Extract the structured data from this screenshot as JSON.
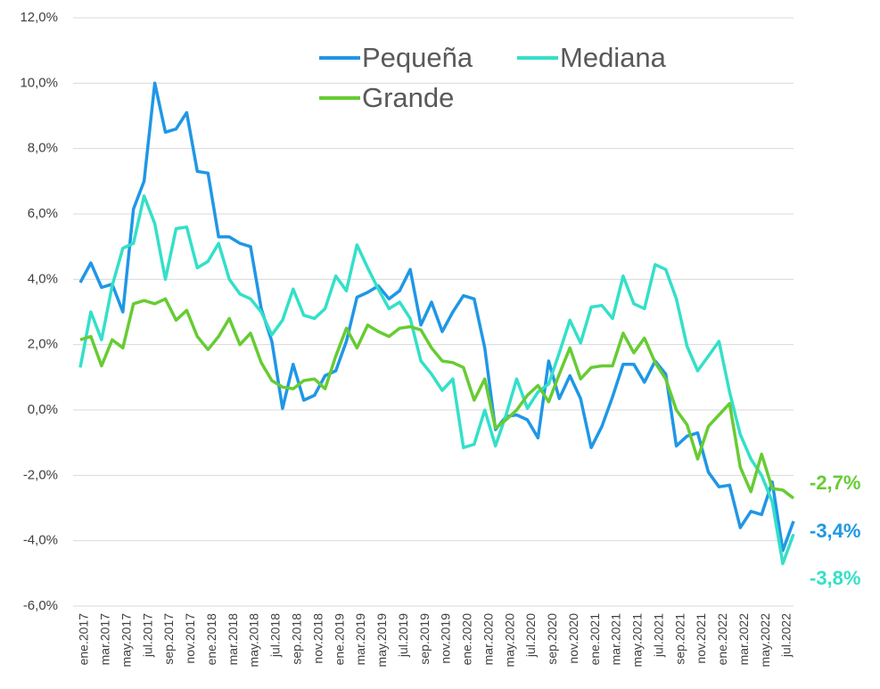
{
  "chart_data": {
    "type": "line",
    "categories": [
      "ene.2017",
      null,
      "mar.2017",
      null,
      "may.2017",
      null,
      "jul.2017",
      null,
      "sep.2017",
      null,
      "nov.2017",
      null,
      "ene.2018",
      null,
      "mar.2018",
      null,
      "may.2018",
      null,
      "jul.2018",
      null,
      "sep.2018",
      null,
      "nov.2018",
      null,
      "ene.2019",
      null,
      "mar.2019",
      null,
      "may.2019",
      null,
      "jul.2019",
      null,
      "sep.2019",
      null,
      "nov.2019",
      null,
      "ene.2020",
      null,
      "mar.2020",
      null,
      "may.2020",
      null,
      "jul.2020",
      null,
      "sep.2020",
      null,
      "nov.2020",
      null,
      "ene.2021",
      null,
      "mar.2021",
      null,
      "may.2021",
      null,
      "jul.2021",
      null,
      "sep.2021",
      null,
      "nov.2021",
      null,
      "ene.2022",
      null,
      "mar.2022",
      null,
      "may.2022",
      null,
      "jul.2022",
      null
    ],
    "series": [
      {
        "name": "Pequeña",
        "color": "#1f97e6",
        "values": [
          3.9,
          4.5,
          3.75,
          3.85,
          3.0,
          6.15,
          7.0,
          10.0,
          8.5,
          8.6,
          9.1,
          7.3,
          7.25,
          5.3,
          5.3,
          5.1,
          5.0,
          3.1,
          2.1,
          0.05,
          1.4,
          0.3,
          0.45,
          1.05,
          1.2,
          2.1,
          3.45,
          3.6,
          3.8,
          3.4,
          3.65,
          4.3,
          2.6,
          3.3,
          2.4,
          3.0,
          3.5,
          3.4,
          1.9,
          -0.6,
          -0.2,
          -0.15,
          -0.3,
          -0.85,
          1.5,
          0.35,
          1.05,
          0.35,
          -1.15,
          -0.5,
          0.4,
          1.4,
          1.4,
          0.85,
          1.5,
          1.1,
          -1.1,
          -0.8,
          -0.7,
          -1.9,
          -2.35,
          -2.3,
          -3.6,
          -3.1,
          -3.2,
          -2.2,
          -4.3,
          -3.4
        ],
        "value_labels": [
          null,
          null,
          null,
          null,
          null,
          null,
          null,
          null,
          null,
          null,
          null,
          null,
          null,
          null,
          null,
          null,
          null,
          null,
          null,
          null,
          null,
          null,
          null,
          null,
          null,
          null,
          null,
          null,
          null,
          null,
          null,
          null,
          null,
          null,
          null,
          null,
          null,
          null,
          null,
          null,
          null,
          null,
          null,
          null,
          null,
          null,
          null,
          null,
          null,
          null,
          null,
          null,
          null,
          null,
          null,
          null,
          null,
          null,
          null,
          null,
          null,
          null,
          null,
          null,
          null,
          null,
          null,
          "-3,4%"
        ]
      },
      {
        "name": "Mediana",
        "color": "#33e0c8",
        "values": [
          1.3,
          3.0,
          2.15,
          3.8,
          4.95,
          5.1,
          6.55,
          5.7,
          4.0,
          5.55,
          5.6,
          4.35,
          4.55,
          5.1,
          4.0,
          3.55,
          3.4,
          3.0,
          2.3,
          2.75,
          3.7,
          2.9,
          2.8,
          3.1,
          4.1,
          3.65,
          5.05,
          4.35,
          3.7,
          3.1,
          3.3,
          2.8,
          1.5,
          1.1,
          0.6,
          0.95,
          -1.15,
          -1.05,
          0.0,
          -1.1,
          -0.15,
          0.95,
          0.05,
          0.55,
          0.8,
          1.75,
          2.75,
          2.05,
          3.15,
          3.2,
          2.8,
          4.1,
          3.25,
          3.1,
          4.45,
          4.3,
          3.4,
          1.95,
          1.2,
          1.65,
          2.1,
          0.55,
          -0.75,
          -1.5,
          -2.0,
          -2.8,
          -4.7,
          -3.8
        ],
        "value_labels": [
          null,
          null,
          null,
          null,
          null,
          null,
          null,
          null,
          null,
          null,
          null,
          null,
          null,
          null,
          null,
          null,
          null,
          null,
          null,
          null,
          null,
          null,
          null,
          null,
          null,
          null,
          null,
          null,
          null,
          null,
          null,
          null,
          null,
          null,
          null,
          null,
          null,
          null,
          null,
          null,
          null,
          null,
          null,
          null,
          null,
          null,
          null,
          null,
          null,
          null,
          null,
          null,
          null,
          null,
          null,
          null,
          null,
          null,
          null,
          null,
          null,
          null,
          null,
          null,
          null,
          null,
          null,
          "-3,8%"
        ]
      },
      {
        "name": "Grande",
        "color": "#66cc33",
        "values": [
          2.15,
          2.25,
          1.35,
          2.15,
          1.9,
          3.25,
          3.35,
          3.25,
          3.4,
          2.75,
          3.05,
          2.25,
          1.85,
          2.25,
          2.8,
          2.0,
          2.35,
          1.45,
          0.9,
          0.7,
          0.65,
          0.9,
          0.95,
          0.65,
          1.65,
          2.5,
          1.9,
          2.6,
          2.4,
          2.25,
          2.5,
          2.55,
          2.45,
          1.9,
          1.5,
          1.45,
          1.3,
          0.3,
          0.95,
          -0.55,
          -0.3,
          0.0,
          0.45,
          0.75,
          0.25,
          1.1,
          1.9,
          0.95,
          1.3,
          1.35,
          1.35,
          2.35,
          1.75,
          2.2,
          1.45,
          0.95,
          0.0,
          -0.45,
          -1.5,
          -0.5,
          -0.15,
          0.2,
          -1.75,
          -2.5,
          -1.35,
          -2.4,
          -2.45,
          -2.7
        ],
        "value_labels": [
          null,
          null,
          null,
          null,
          null,
          null,
          null,
          null,
          null,
          null,
          null,
          null,
          null,
          null,
          null,
          null,
          null,
          null,
          null,
          null,
          null,
          null,
          null,
          null,
          null,
          null,
          null,
          null,
          null,
          null,
          null,
          null,
          null,
          null,
          null,
          null,
          null,
          null,
          null,
          null,
          null,
          null,
          null,
          null,
          null,
          null,
          null,
          null,
          null,
          null,
          null,
          null,
          null,
          null,
          null,
          null,
          null,
          null,
          null,
          null,
          null,
          null,
          null,
          null,
          null,
          null,
          null,
          "-2,7%"
        ]
      }
    ],
    "ylim": [
      -6,
      12
    ],
    "yticks": [
      {
        "value": -6,
        "label": "-6,0%"
      },
      {
        "value": -4,
        "label": "-4,0%"
      },
      {
        "value": -2,
        "label": "-2,0%"
      },
      {
        "value": 0,
        "label": "0,0%"
      },
      {
        "value": 2,
        "label": "2,0%"
      },
      {
        "value": 4,
        "label": "4,0%"
      },
      {
        "value": 6,
        "label": "6,0%"
      },
      {
        "value": 8,
        "label": "8,0%"
      },
      {
        "value": 10,
        "label": "10,0%"
      },
      {
        "value": 12,
        "label": "12,0%"
      }
    ],
    "grid": true
  }
}
